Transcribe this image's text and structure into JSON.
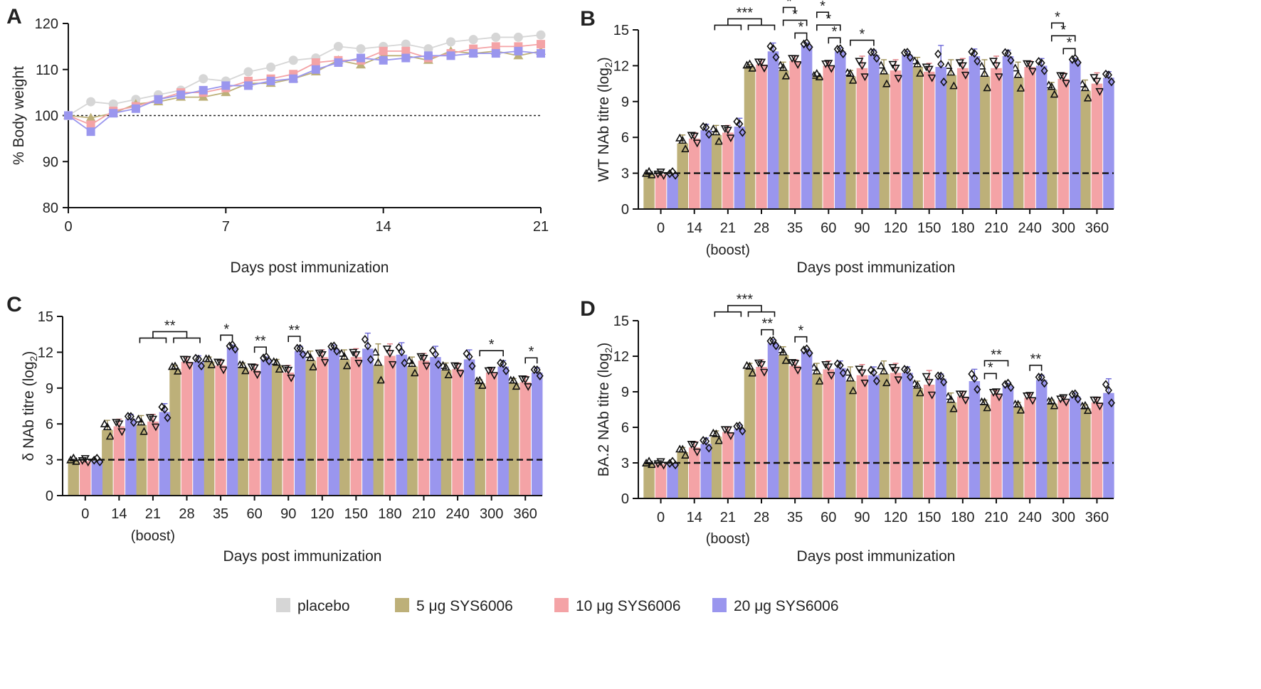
{
  "legend": {
    "placement": "bottom-center",
    "items": [
      {
        "label": "placebo",
        "color": "#d6d6d6"
      },
      {
        "label": "5 μg SYS6006",
        "color": "#bdb079"
      },
      {
        "label": "10 μg SYS6006",
        "color": "#f4a3a6"
      },
      {
        "label": "20 μg SYS6006",
        "color": "#9a96ee"
      }
    ]
  },
  "chart_data": [
    {
      "panel": "A",
      "type": "line",
      "xlabel": "Days post immunization",
      "ylabel": "% Body weight",
      "xlim": [
        0,
        21
      ],
      "ylim": [
        80,
        120
      ],
      "xticks": [
        0,
        7,
        14,
        21
      ],
      "yticks": [
        80,
        90,
        100,
        110,
        120
      ],
      "reference_line": 100,
      "x": [
        0,
        1,
        2,
        3,
        4,
        5,
        6,
        7,
        8,
        9,
        10,
        11,
        12,
        13,
        14,
        15,
        16,
        17,
        18,
        19,
        20,
        21
      ],
      "series": [
        {
          "name": "placebo",
          "marker": "circle",
          "values": [
            100,
            103,
            102.5,
            103.5,
            104.5,
            105.5,
            108,
            107.5,
            109.5,
            110.5,
            112,
            112.5,
            115,
            114.5,
            115,
            115.5,
            114.5,
            116,
            116.5,
            117,
            117,
            117.5
          ]
        },
        {
          "name": "5 μg SYS6006",
          "marker": "triangle",
          "values": [
            100,
            99.5,
            100.5,
            102.5,
            103,
            104,
            104,
            105,
            107,
            107,
            108,
            109.5,
            112,
            111,
            113,
            113,
            112,
            114,
            113.5,
            114,
            113,
            114
          ]
        },
        {
          "name": "10 μg SYS6006",
          "marker": "square",
          "values": [
            100,
            98,
            101,
            102,
            103.5,
            105,
            105,
            106,
            107.5,
            108,
            109,
            111.5,
            112,
            112,
            114,
            114,
            112.5,
            113.5,
            114.5,
            115,
            115,
            115.5
          ]
        },
        {
          "name": "20 μg SYS6006",
          "marker": "square",
          "values": [
            100,
            96.5,
            100.5,
            101.5,
            103.5,
            104.5,
            105.5,
            106.5,
            106.5,
            107.5,
            108,
            110,
            111.5,
            112.5,
            112,
            112.5,
            113,
            113,
            113.5,
            113.5,
            114,
            113.5
          ]
        }
      ]
    },
    {
      "panel": "B",
      "type": "bar",
      "ylabel": "WT NAb titre (log2)",
      "xlabel": "Days post immunization",
      "categories": [
        "0",
        "14",
        "21",
        "28",
        "35",
        "60",
        "90",
        "120",
        "150",
        "180",
        "210",
        "240",
        "300",
        "360"
      ],
      "boost_label": "(boost)",
      "boost_index": 2,
      "ylim": [
        0,
        15
      ],
      "yticks": [
        0,
        3,
        6,
        9,
        12,
        15
      ],
      "limit_of_detection": 3,
      "series": [
        {
          "name": "5 μg SYS6006",
          "values": [
            2.9,
            5.5,
            6.2,
            11.9,
            11.6,
            11.1,
            11.1,
            11.3,
            11.9,
            11.2,
            11.1,
            11.0,
            10.0,
            9.9
          ],
          "errors": [
            0.1,
            0.7,
            0.8,
            0.2,
            0.7,
            0.1,
            0.5,
            1.2,
            0.8,
            1.3,
            1.4,
            1.3,
            0.6,
            0.9
          ]
        },
        {
          "name": "10 μg SYS6006",
          "values": [
            2.9,
            5.9,
            6.4,
            12.1,
            12.4,
            12.0,
            11.8,
            11.6,
            11.5,
            11.8,
            11.8,
            11.9,
            10.9,
            10.5
          ],
          "errors": [
            0.1,
            0.5,
            0.6,
            0.4,
            0.4,
            0.3,
            1.0,
            0.9,
            0.7,
            0.8,
            1.0,
            0.5,
            0.5,
            0.9
          ]
        },
        {
          "name": "20 μg SYS6006",
          "values": [
            2.9,
            6.6,
            6.9,
            13.2,
            13.7,
            13.2,
            12.9,
            12.9,
            11.9,
            12.8,
            12.8,
            12.0,
            12.4,
            11.0
          ],
          "errors": [
            0.1,
            0.5,
            0.7,
            0.7,
            0.2,
            0.3,
            0.4,
            0.3,
            1.8,
            0.6,
            0.5,
            0.6,
            0.2,
            0.5
          ]
        }
      ],
      "significance": [
        {
          "cat": 2,
          "label": "***",
          "kind": "cross",
          "level": 0
        },
        {
          "cat": 4,
          "label": "*",
          "pair": [
            1,
            2
          ],
          "level": 0
        },
        {
          "cat": 4,
          "label": "*",
          "pair": [
            0,
            2
          ],
          "level": 1
        },
        {
          "cat": 4,
          "label": "*",
          "pair": [
            0,
            1
          ],
          "level": 2
        },
        {
          "cat": 5,
          "label": "*",
          "pair": [
            1,
            2
          ],
          "level": 0
        },
        {
          "cat": 5,
          "label": "*",
          "pair": [
            0,
            2
          ],
          "level": 1
        },
        {
          "cat": 5,
          "label": "*",
          "pair": [
            0,
            1
          ],
          "level": 2
        },
        {
          "cat": 6,
          "label": "*",
          "pair": [
            0,
            2
          ],
          "level": 0
        },
        {
          "cat": 12,
          "label": "*",
          "pair": [
            1,
            2
          ],
          "level": 0
        },
        {
          "cat": 12,
          "label": "*",
          "pair": [
            0,
            2
          ],
          "level": 1
        },
        {
          "cat": 12,
          "label": "*",
          "pair": [
            0,
            1
          ],
          "level": 2
        }
      ]
    },
    {
      "panel": "C",
      "type": "bar",
      "ylabel": "δ NAb titre (log2)",
      "xlabel": "Days post immunization",
      "categories": [
        "0",
        "14",
        "21",
        "28",
        "35",
        "60",
        "90",
        "120",
        "150",
        "180",
        "210",
        "240",
        "300",
        "360"
      ],
      "boost_label": "(boost)",
      "boost_index": 2,
      "ylim": [
        0,
        15
      ],
      "yticks": [
        0,
        3,
        6,
        9,
        12,
        15
      ],
      "limit_of_detection": 3,
      "series": [
        {
          "name": "5 μg SYS6006",
          "values": [
            2.9,
            5.5,
            5.9,
            10.6,
            11.2,
            10.7,
            10.9,
            11.3,
            11.4,
            10.9,
            10.8,
            10.5,
            9.4,
            9.4
          ],
          "errors": [
            0.1,
            0.8,
            0.8,
            0.3,
            0.4,
            0.4,
            0.5,
            0.8,
            0.8,
            1.8,
            0.8,
            0.6,
            0.3,
            0.4
          ]
        },
        {
          "name": "10 μg SYS6006",
          "values": [
            2.9,
            5.8,
            6.2,
            11.2,
            10.9,
            10.5,
            10.3,
            11.6,
            11.6,
            11.7,
            11.3,
            10.6,
            10.3,
            9.5
          ],
          "errors": [
            0.1,
            0.6,
            0.6,
            0.4,
            0.5,
            0.5,
            0.6,
            0.6,
            0.7,
            1.0,
            0.6,
            0.5,
            0.3,
            0.5
          ]
        },
        {
          "name": "20 μg SYS6006",
          "values": [
            2.9,
            6.4,
            7.0,
            11.2,
            12.4,
            11.4,
            12.1,
            12.3,
            12.3,
            11.8,
            11.6,
            11.4,
            10.8,
            10.3
          ],
          "errors": [
            0.1,
            0.4,
            0.7,
            0.5,
            0.2,
            0.2,
            0.4,
            0.3,
            1.3,
            1.0,
            0.9,
            0.8,
            0.5,
            0.4
          ]
        }
      ],
      "significance": [
        {
          "cat": 2,
          "label": "**",
          "kind": "cross",
          "level": 0
        },
        {
          "cat": 4,
          "label": "*",
          "pair": [
            1,
            2
          ],
          "level": 0
        },
        {
          "cat": 5,
          "label": "**",
          "pair": [
            1,
            2
          ],
          "level": 0
        },
        {
          "cat": 6,
          "label": "**",
          "pair": [
            1,
            2
          ],
          "level": 0
        },
        {
          "cat": 12,
          "label": "*",
          "pair": [
            0,
            2
          ],
          "level": 0
        },
        {
          "cat": 13,
          "label": "*",
          "pair": [
            1,
            2
          ],
          "level": 0
        }
      ]
    },
    {
      "panel": "D",
      "type": "bar",
      "ylabel": "BA.2 NAb titre (log2)",
      "xlabel": "Days post immunization",
      "categories": [
        "0",
        "14",
        "21",
        "28",
        "35",
        "60",
        "90",
        "120",
        "150",
        "180",
        "210",
        "240",
        "300",
        "360"
      ],
      "boost_label": "(boost)",
      "boost_index": 2,
      "ylim": [
        0,
        15
      ],
      "yticks": [
        0,
        3,
        6,
        9,
        12,
        15
      ],
      "limit_of_detection": 3,
      "series": [
        {
          "name": "5 μg SYS6006",
          "values": [
            2.9,
            3.9,
            5.2,
            10.9,
            12.1,
            10.5,
            9.9,
            10.5,
            9.3,
            8.1,
            7.9,
            7.7,
            8.0,
            7.6
          ],
          "errors": [
            0.1,
            0.4,
            0.5,
            0.5,
            0.7,
            0.9,
            1.2,
            1.1,
            0.6,
            0.8,
            0.4,
            0.4,
            0.3,
            0.3
          ]
        },
        {
          "name": "10 μg SYS6006",
          "values": [
            2.9,
            4.3,
            5.6,
            11.1,
            11.2,
            10.9,
            10.4,
            10.6,
            9.6,
            8.6,
            8.8,
            8.5,
            8.3,
            8.1
          ],
          "errors": [
            0.1,
            0.5,
            0.4,
            0.6,
            0.5,
            0.7,
            0.9,
            0.8,
            1.2,
            0.4,
            0.3,
            0.3,
            0.2,
            0.4
          ]
        },
        {
          "name": "20 μg SYS6006",
          "values": [
            2.9,
            4.6,
            5.9,
            13.1,
            12.4,
            11.0,
            10.4,
            10.6,
            10.1,
            9.9,
            9.5,
            10.0,
            8.6,
            8.9
          ],
          "errors": [
            0.1,
            0.5,
            0.3,
            0.3,
            0.2,
            0.6,
            0.7,
            0.5,
            0.4,
            1.0,
            0.2,
            0.4,
            0.3,
            1.2
          ]
        }
      ],
      "significance": [
        {
          "cat": 2,
          "label": "***",
          "kind": "cross",
          "level": 1
        },
        {
          "cat": 3,
          "label": "**",
          "pair": [
            1,
            2
          ],
          "level": 0
        },
        {
          "cat": 4,
          "label": "*",
          "pair": [
            1,
            2
          ],
          "level": 0
        },
        {
          "cat": 10,
          "label": "*",
          "pair": [
            0,
            1
          ],
          "level": 0
        },
        {
          "cat": 10,
          "label": "**",
          "pair": [
            0,
            2
          ],
          "level": 1
        },
        {
          "cat": 11,
          "label": "**",
          "pair": [
            1,
            2
          ],
          "level": 0
        }
      ]
    }
  ]
}
